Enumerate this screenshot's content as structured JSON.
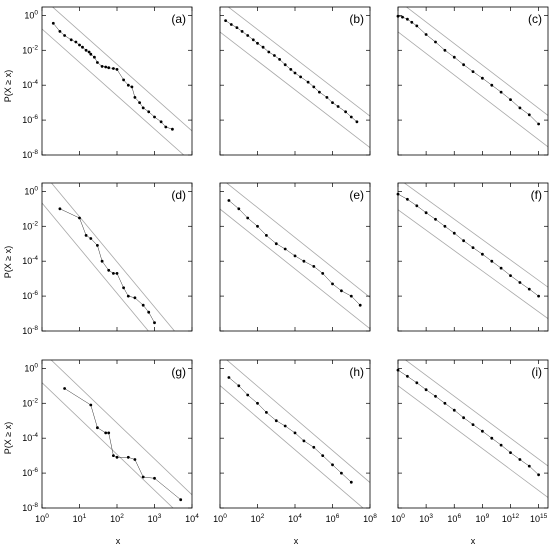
{
  "figure": {
    "ylabel": "P(X ≥ x)",
    "xlabel": "x"
  },
  "chart_data": [
    {
      "panel": "(a)",
      "type": "scatter",
      "xscale": "log",
      "yscale": "log",
      "xlim": [
        1,
        10000
      ],
      "ylim": [
        1e-08,
        3
      ],
      "x": [
        2,
        3,
        4,
        6,
        8,
        10,
        12,
        15,
        18,
        20,
        25,
        30,
        40,
        50,
        60,
        80,
        100,
        150,
        200,
        250,
        300,
        400,
        500,
        700,
        1000,
        1500,
        2000,
        3000
      ],
      "y": [
        0.35,
        0.12,
        0.07,
        0.04,
        0.03,
        0.02,
        0.015,
        0.01,
        0.008,
        0.006,
        0.004,
        0.002,
        0.0012,
        0.0011,
        0.001,
        0.0009,
        0.0008,
        0.0002,
        0.0001,
        8e-05,
        2e-05,
        1e-05,
        5e-06,
        3e-06,
        1.5e-06,
        8e-07,
        4e-07,
        3e-07
      ]
    },
    {
      "panel": "(b)",
      "type": "scatter",
      "xscale": "log",
      "yscale": "log",
      "xlim": [
        1,
        100000000
      ],
      "ylim": [
        1e-08,
        3
      ],
      "x": [
        2,
        4,
        8,
        15,
        30,
        60,
        100,
        200,
        400,
        800,
        1500,
        3000,
        6000,
        10000,
        20000,
        50000,
        100000,
        200000,
        500000,
        1000000,
        2000000,
        5000000,
        10000000,
        20000000
      ],
      "y": [
        0.5,
        0.3,
        0.2,
        0.12,
        0.07,
        0.04,
        0.025,
        0.015,
        0.008,
        0.005,
        0.003,
        0.0015,
        0.0008,
        0.0005,
        0.0003,
        0.00015,
        8e-05,
        4e-05,
        2e-05,
        1e-05,
        6e-06,
        3e-06,
        1.5e-06,
        8e-07
      ]
    },
    {
      "panel": "(c)",
      "type": "scatter",
      "xscale": "log",
      "yscale": "log",
      "xlim": [
        1,
        1e+16
      ],
      "ylim": [
        1e-08,
        3
      ],
      "x": [
        1,
        3,
        10,
        30,
        100,
        1000,
        10000,
        100000,
        1000000,
        10000000,
        100000000,
        1000000000,
        10000000000,
        100000000000,
        1000000000000,
        10000000000000,
        100000000000000,
        1000000000000000
      ],
      "y": [
        0.9,
        0.8,
        0.6,
        0.4,
        0.25,
        0.08,
        0.03,
        0.01,
        0.004,
        0.0015,
        0.0006,
        0.00025,
        0.0001,
        4e-05,
        1.5e-05,
        5e-06,
        2e-06,
        6e-07
      ]
    },
    {
      "panel": "(d)",
      "type": "scatter",
      "xscale": "log",
      "yscale": "log",
      "xlim": [
        1,
        10000
      ],
      "ylim": [
        1e-08,
        3
      ],
      "x": [
        3,
        10,
        15,
        20,
        30,
        40,
        60,
        80,
        100,
        150,
        200,
        300,
        500,
        700,
        1000
      ],
      "y": [
        0.1,
        0.03,
        0.003,
        0.002,
        0.0008,
        0.0001,
        3e-05,
        2e-05,
        2e-05,
        3e-06,
        1e-06,
        8e-07,
        3e-07,
        1.2e-07,
        3e-08
      ]
    },
    {
      "panel": "(e)",
      "type": "scatter",
      "xscale": "log",
      "yscale": "log",
      "xlim": [
        1,
        100000000
      ],
      "ylim": [
        1e-08,
        3
      ],
      "x": [
        3,
        10,
        30,
        100,
        300,
        1000,
        3000,
        10000,
        30000,
        100000,
        300000,
        1000000,
        3000000,
        10000000,
        30000000
      ],
      "y": [
        0.3,
        0.1,
        0.03,
        0.01,
        0.003,
        0.001,
        0.0005,
        0.0002,
        0.0001,
        5e-05,
        2e-05,
        5e-06,
        2e-06,
        1e-06,
        3e-07
      ]
    },
    {
      "panel": "(f)",
      "type": "scatter",
      "xscale": "log",
      "yscale": "log",
      "xlim": [
        1,
        1e+16
      ],
      "ylim": [
        1e-08,
        3
      ],
      "x": [
        1,
        10,
        100,
        1000,
        10000,
        100000,
        1000000,
        10000000,
        100000000,
        1000000000,
        10000000000,
        100000000000,
        1000000000000,
        10000000000000,
        100000000000000,
        1000000000000000
      ],
      "y": [
        0.7,
        0.35,
        0.15,
        0.06,
        0.025,
        0.01,
        0.004,
        0.0015,
        0.0006,
        0.00025,
        0.0001,
        4e-05,
        1.5e-05,
        6e-06,
        2.5e-06,
        1e-06
      ]
    },
    {
      "panel": "(g)",
      "type": "scatter",
      "xscale": "log",
      "yscale": "log",
      "xlim": [
        1,
        10000
      ],
      "ylim": [
        1e-08,
        3
      ],
      "x": [
        4,
        20,
        30,
        50,
        60,
        80,
        100,
        200,
        300,
        500,
        1000,
        5000
      ],
      "y": [
        0.07,
        0.008,
        0.0004,
        0.0002,
        0.0002,
        1e-05,
        8e-06,
        8e-06,
        6e-06,
        6e-07,
        5e-07,
        3e-08
      ]
    },
    {
      "panel": "(h)",
      "type": "scatter",
      "xscale": "log",
      "yscale": "log",
      "xlim": [
        1,
        100000000
      ],
      "ylim": [
        1e-08,
        3
      ],
      "x": [
        3,
        10,
        30,
        100,
        300,
        1000,
        3000,
        10000,
        30000,
        100000,
        300000,
        1000000,
        3000000,
        10000000
      ],
      "y": [
        0.3,
        0.1,
        0.03,
        0.01,
        0.003,
        0.001,
        0.0005,
        0.0002,
        7e-05,
        3e-05,
        1e-05,
        3e-06,
        1e-06,
        3e-07
      ]
    },
    {
      "panel": "(i)",
      "type": "scatter",
      "xscale": "log",
      "yscale": "log",
      "xlim": [
        1,
        1e+16
      ],
      "ylim": [
        1e-08,
        3
      ],
      "x": [
        1,
        10,
        100,
        1000,
        10000,
        100000,
        1000000,
        10000000,
        100000000,
        1000000000,
        10000000000,
        100000000000,
        1000000000000,
        10000000000000,
        100000000000000,
        1000000000000000
      ],
      "y": [
        0.8,
        0.35,
        0.15,
        0.06,
        0.025,
        0.01,
        0.004,
        0.0015,
        0.0006,
        0.00025,
        0.0001,
        4e-05,
        1.5e-05,
        6e-06,
        2.5e-06,
        8e-07
      ]
    }
  ],
  "ticks": {
    "y": [
      {
        "base": "10",
        "exp": "0"
      },
      {
        "base": "10",
        "exp": "-2"
      },
      {
        "base": "10",
        "exp": "-4"
      },
      {
        "base": "10",
        "exp": "-6"
      },
      {
        "base": "10",
        "exp": "-8"
      }
    ],
    "x_col1": [
      {
        "base": "10",
        "exp": "0"
      },
      {
        "base": "10",
        "exp": "1"
      },
      {
        "base": "10",
        "exp": "2"
      },
      {
        "base": "10",
        "exp": "3"
      },
      {
        "base": "10",
        "exp": "4"
      }
    ],
    "x_col2": [
      {
        "base": "10",
        "exp": "0"
      },
      {
        "base": "10",
        "exp": "2"
      },
      {
        "base": "10",
        "exp": "4"
      },
      {
        "base": "10",
        "exp": "6"
      },
      {
        "base": "10",
        "exp": "8"
      }
    ],
    "x_col3": [
      {
        "base": "10",
        "exp": "0"
      },
      {
        "base": "10",
        "exp": "3"
      },
      {
        "base": "10",
        "exp": "6"
      },
      {
        "base": "10",
        "exp": "9"
      },
      {
        "base": "10",
        "exp": "12"
      },
      {
        "base": "10",
        "exp": "15"
      }
    ]
  }
}
